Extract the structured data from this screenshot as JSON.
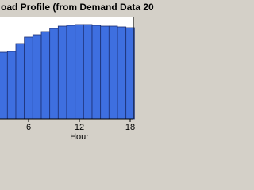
{
  "chart_data": {
    "type": "bar",
    "title": "oad Profile (from Demand Data 20",
    "x_label": "Hour",
    "x": [
      3,
      4,
      5,
      6,
      7,
      8,
      9,
      10,
      11,
      12,
      13,
      14,
      15,
      16,
      17,
      18
    ],
    "values": [
      84,
      85,
      95,
      103,
      106,
      110,
      114,
      117,
      118,
      119,
      119,
      118,
      117,
      117,
      116,
      115
    ],
    "color": "#3e6fe0",
    "xlim": [
      2.625,
      18.375
    ],
    "xticks": [
      6,
      12,
      18
    ],
    "ylim": [
      0,
      128
    ]
  }
}
